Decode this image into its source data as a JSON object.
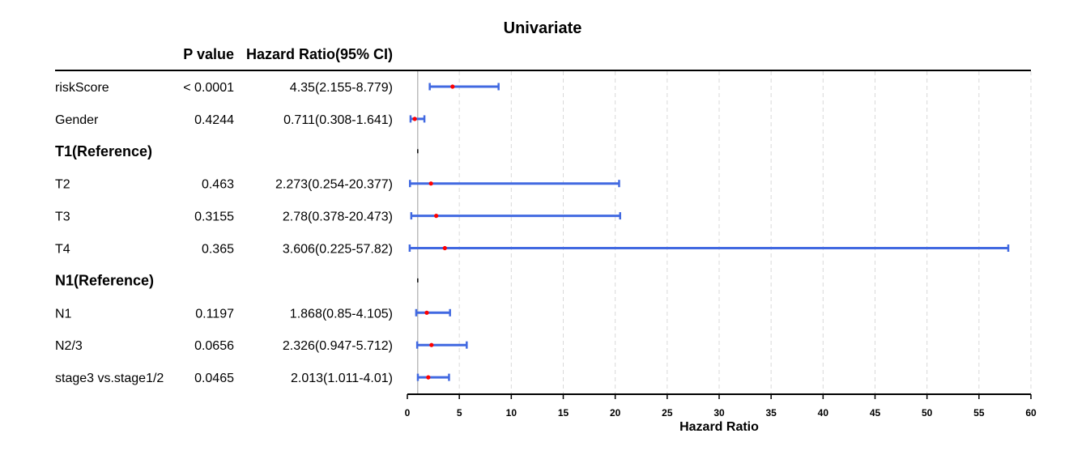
{
  "chart_data": {
    "type": "forest",
    "title": "Univariate",
    "columns": {
      "pvalue": "P value",
      "hr": "Hazard Ratio(95% CI)"
    },
    "xlabel": "Hazard Ratio",
    "xlim": [
      0,
      60
    ],
    "xticks": [
      0,
      5,
      10,
      15,
      20,
      25,
      30,
      35,
      40,
      45,
      50,
      55,
      60
    ],
    "reference_line": 1,
    "grid": "vertical-dashed",
    "colors": {
      "ci": "#4169e1",
      "point": "#ff0000",
      "reference": "#000000"
    },
    "rows": [
      {
        "label": "riskScore",
        "pvalue": "< 0.0001",
        "hr_text": "4.35(2.155-8.779)",
        "hr": 4.35,
        "lower": 2.155,
        "upper": 8.779,
        "reference": false
      },
      {
        "label": "Gender",
        "pvalue": "0.4244",
        "hr_text": "0.711(0.308-1.641)",
        "hr": 0.711,
        "lower": 0.308,
        "upper": 1.641,
        "reference": false
      },
      {
        "label": "T1(Reference)",
        "pvalue": "",
        "hr_text": "",
        "hr": 1,
        "lower": 1,
        "upper": 1,
        "reference": true
      },
      {
        "label": "T2",
        "pvalue": "0.463",
        "hr_text": "2.273(0.254-20.377)",
        "hr": 2.273,
        "lower": 0.254,
        "upper": 20.377,
        "reference": false
      },
      {
        "label": "T3",
        "pvalue": "0.3155",
        "hr_text": "2.78(0.378-20.473)",
        "hr": 2.78,
        "lower": 0.378,
        "upper": 20.473,
        "reference": false
      },
      {
        "label": "T4",
        "pvalue": "0.365",
        "hr_text": "3.606(0.225-57.82)",
        "hr": 3.606,
        "lower": 0.225,
        "upper": 57.82,
        "reference": false
      },
      {
        "label": "N1(Reference)",
        "pvalue": "",
        "hr_text": "",
        "hr": 1,
        "lower": 1,
        "upper": 1,
        "reference": true
      },
      {
        "label": "N1",
        "pvalue": "0.1197",
        "hr_text": "1.868(0.85-4.105)",
        "hr": 1.868,
        "lower": 0.85,
        "upper": 4.105,
        "reference": false
      },
      {
        "label": "N2/3",
        "pvalue": "0.0656",
        "hr_text": "2.326(0.947-5.712)",
        "hr": 2.326,
        "lower": 0.947,
        "upper": 5.712,
        "reference": false
      },
      {
        "label": "stage3 vs.stage1/2",
        "pvalue": "0.0465",
        "hr_text": "2.013(1.011-4.01)",
        "hr": 2.013,
        "lower": 1.011,
        "upper": 4.01,
        "reference": false
      }
    ]
  }
}
